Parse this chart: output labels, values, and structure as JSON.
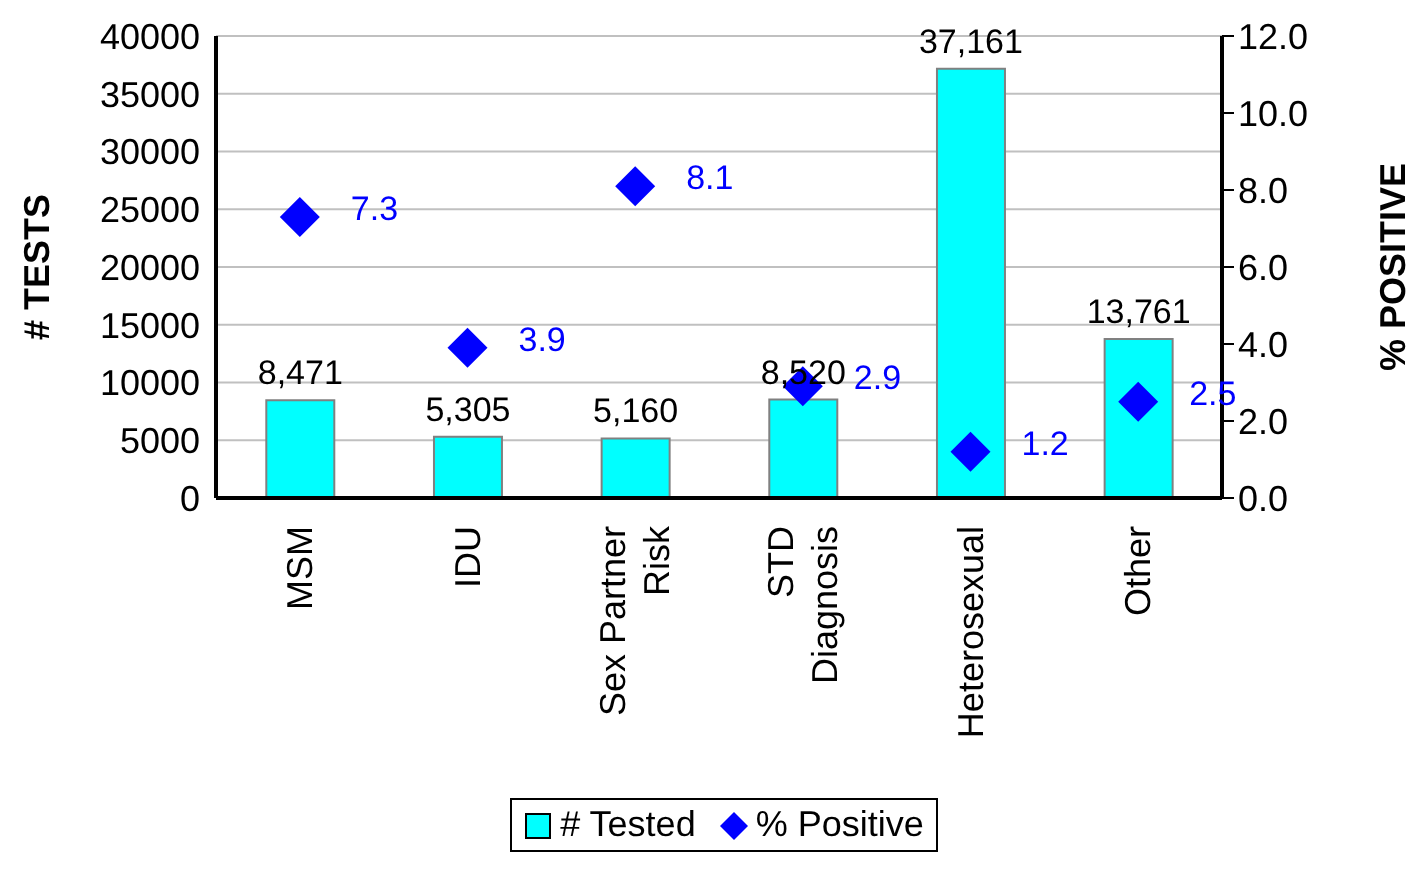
{
  "chart_data": {
    "type": "bar",
    "categories": [
      "MSM",
      "IDU",
      "Sex Partner Risk",
      "STD Diagnosis",
      "Heterosexual",
      "Other"
    ],
    "ylabel": "# TESTS",
    "y2label": "% POSITIVE",
    "ylim": [
      0,
      40000
    ],
    "yticks": [
      0,
      5000,
      10000,
      15000,
      20000,
      25000,
      30000,
      35000,
      40000
    ],
    "y2lim": [
      0,
      12
    ],
    "y2ticks": [
      {
        "value": 0,
        "label": "0.0"
      },
      {
        "value": 2,
        "label": "2.0"
      },
      {
        "value": 4,
        "label": "4.0"
      },
      {
        "value": 6,
        "label": "6.0"
      },
      {
        "value": 8,
        "label": "8.0"
      },
      {
        "value": 10,
        "label": "10.0"
      },
      {
        "value": 12,
        "label": "12.0"
      }
    ],
    "series": [
      {
        "name": "# Tested",
        "color": "#00ffff",
        "values": [
          8471,
          5305,
          5160,
          8520,
          37161,
          13761
        ],
        "value_labels": [
          "8,471",
          "5,305",
          "5,160",
          "8,520",
          "37,161",
          "13,761"
        ]
      },
      {
        "name": "% Positive",
        "type": "scatter",
        "axis": "y2",
        "marker": "diamond",
        "color": "#0000ff",
        "values": [
          7.3,
          3.9,
          8.1,
          2.9,
          1.2,
          2.5
        ],
        "value_labels": [
          "7.3",
          "3.9",
          "8.1",
          "2.9",
          "1.2",
          "2.5"
        ]
      }
    ],
    "grid": "y",
    "legend": "bottom"
  }
}
